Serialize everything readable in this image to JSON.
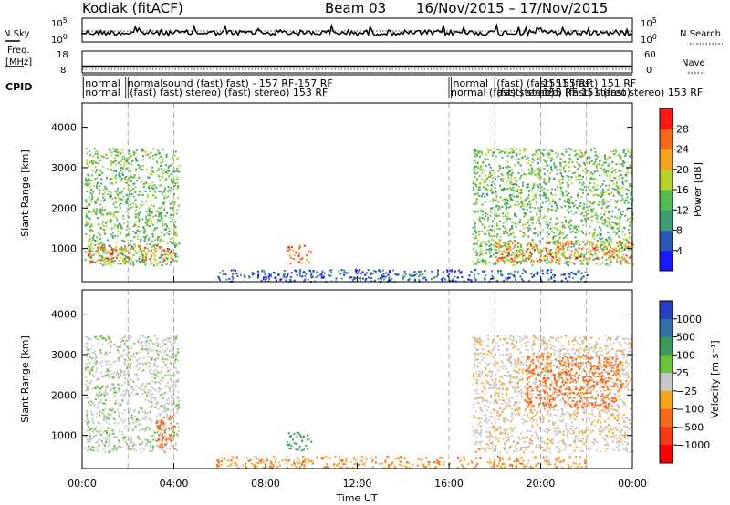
{
  "header": {
    "station": "Kodiak (fitACF)",
    "beam": "Beam 03",
    "date_range": "16/Nov/2015 – 17/Nov/2015"
  },
  "top_strips": {
    "nsky_label": "N.Sky",
    "nsky_ticks": [
      "10^5",
      "10^0"
    ],
    "nsearch_label": "N.Search",
    "nsearch_ticks": [
      "10^5",
      "10^0"
    ],
    "freq_label_line1": "Freq.",
    "freq_label_line2": "[MHz]",
    "freq_ticks": [
      "18",
      "8"
    ],
    "nave_label": "Nave",
    "nave_ticks": [
      "60",
      "0"
    ],
    "cpid_label": "CPID"
  },
  "cpid_annotations": [
    {
      "hour": 0.05,
      "row": 0,
      "text": "normal"
    },
    {
      "hour": 0.05,
      "row": 1,
      "text": "normal"
    },
    {
      "hour": 1.9,
      "row": 0,
      "text": "normalsound (fast) fast) - 157 RF-157 RF"
    },
    {
      "hour": 2.0,
      "row": 1,
      "text": "(fast) fast) stereo) (fast) stereo) 153 RF"
    },
    {
      "hour": 16.0,
      "row": 1,
      "text": "normal (fast) stereo)"
    },
    {
      "hour": 16.1,
      "row": 0,
      "text": "normal"
    },
    {
      "hour": 18.0,
      "row": 0,
      "text": "(fast) (fast) 155 RF"
    },
    {
      "hour": 18.0,
      "row": 1,
      "text": "(fast) stereo) (fast) stereo)"
    },
    {
      "hour": 20.0,
      "row": 0,
      "text": "1551 (fast) 151 RF"
    },
    {
      "hour": 20.0,
      "row": 1,
      "text": "155 RF 151 (fast stereo) 153 RF"
    }
  ],
  "chart_data": [
    {
      "type": "heatmap",
      "panel": "power",
      "ylabel": "Slant Range [km]",
      "xlabel": "Time UT",
      "x_ticks": [
        "00:00",
        "04:00",
        "08:00",
        "12:00",
        "16:00",
        "20:00",
        "00:00"
      ],
      "x_range_hours": [
        0,
        24
      ],
      "y_ticks": [
        1000,
        2000,
        3000,
        4000
      ],
      "ylim": [
        180,
        4600
      ],
      "colorbar": {
        "label": "Power [dB]",
        "ticks": [
          4,
          8,
          12,
          16,
          20,
          24,
          28
        ],
        "range": [
          0,
          32
        ],
        "colors": [
          "#1a1aff",
          "#2a5ab5",
          "#3d9d74",
          "#55bb4f",
          "#b7d22a",
          "#f4a623",
          "#f46b1c",
          "#ff1a1a"
        ]
      },
      "regions": [
        {
          "t0": 0.1,
          "t1": 4.2,
          "r0": 600,
          "r1": 3500,
          "level": 14
        },
        {
          "t0": 0.2,
          "t1": 3.9,
          "r0": 700,
          "r1": 1100,
          "level": 24
        },
        {
          "t0": 8.9,
          "t1": 10.0,
          "r0": 650,
          "r1": 1100,
          "level": 26
        },
        {
          "t0": 17.0,
          "t1": 24.0,
          "r0": 600,
          "r1": 3500,
          "level": 14
        },
        {
          "t0": 18.0,
          "t1": 24.0,
          "r0": 700,
          "r1": 1200,
          "level": 24
        },
        {
          "t0": 5.8,
          "t1": 22.0,
          "r0": 200,
          "r1": 500,
          "level": 6
        }
      ]
    },
    {
      "type": "heatmap",
      "panel": "velocity",
      "ylabel": "Slant Range [km]",
      "xlabel": "Time UT",
      "x_ticks": [
        "00:00",
        "04:00",
        "08:00",
        "12:00",
        "16:00",
        "20:00",
        "00:00"
      ],
      "x_range_hours": [
        0,
        24
      ],
      "y_ticks": [
        1000,
        2000,
        3000,
        4000
      ],
      "ylim": [
        180,
        4600
      ],
      "colorbar": {
        "label": "Velocity [m s⁻¹]",
        "ticks": [
          "1000",
          "500",
          "100",
          "25",
          "−25",
          "−100",
          "−500",
          "−1000"
        ],
        "colors": [
          "#2a3fbf",
          "#2f6fa8",
          "#3b9b5c",
          "#67c43a",
          "#c8c8c8",
          "#f7a51c",
          "#f46a1a",
          "#f43a14",
          "#ff0000"
        ]
      },
      "regions": [
        {
          "t0": 0.1,
          "t1": 4.2,
          "r0": 600,
          "r1": 3500,
          "vel": 10
        },
        {
          "t0": 3.2,
          "t1": 4.0,
          "r0": 700,
          "r1": 1500,
          "vel": -300
        },
        {
          "t0": 8.9,
          "t1": 10.0,
          "r0": 650,
          "r1": 1100,
          "vel": 200
        },
        {
          "t0": 17.0,
          "t1": 24.0,
          "r0": 600,
          "r1": 3500,
          "vel": -10
        },
        {
          "t0": 19.3,
          "t1": 23.5,
          "r0": 1700,
          "r1": 3000,
          "vel": -300
        },
        {
          "t0": 5.8,
          "t1": 22.0,
          "r0": 200,
          "r1": 500,
          "vel": -80
        }
      ]
    }
  ]
}
